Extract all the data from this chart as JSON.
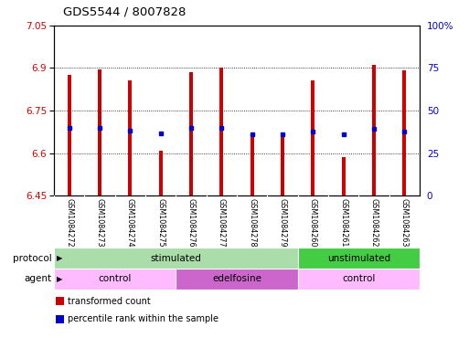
{
  "title": "GDS5544 / 8007828",
  "samples": [
    "GSM1084272",
    "GSM1084273",
    "GSM1084274",
    "GSM1084275",
    "GSM1084276",
    "GSM1084277",
    "GSM1084278",
    "GSM1084279",
    "GSM1084260",
    "GSM1084261",
    "GSM1084262",
    "GSM1084263"
  ],
  "bar_tops": [
    6.875,
    6.895,
    6.855,
    6.608,
    6.885,
    6.9,
    6.66,
    6.665,
    6.855,
    6.585,
    6.91,
    6.892
  ],
  "bar_bottoms": [
    6.45,
    6.45,
    6.45,
    6.45,
    6.45,
    6.45,
    6.45,
    6.45,
    6.45,
    6.45,
    6.45,
    6.45
  ],
  "percentile_vals": [
    6.69,
    6.69,
    6.68,
    6.67,
    6.69,
    6.69,
    6.665,
    6.665,
    6.675,
    6.665,
    6.685,
    6.675
  ],
  "ylim_left": [
    6.45,
    7.05
  ],
  "ylim_right": [
    0,
    100
  ],
  "yticks_left": [
    6.45,
    6.6,
    6.75,
    6.9,
    7.05
  ],
  "yticks_right": [
    0,
    25,
    50,
    75,
    100
  ],
  "ytick_labels_left": [
    "6.45",
    "6.6",
    "6.75",
    "6.9",
    "7.05"
  ],
  "ytick_labels_right": [
    "0",
    "25",
    "50",
    "75",
    "100%"
  ],
  "bar_color": "#cc0000",
  "percentile_color": "#0000cc",
  "grid_color": "#000000",
  "protocol_groups": [
    {
      "label": "stimulated",
      "start": 0,
      "end": 8,
      "color": "#aaddaa"
    },
    {
      "label": "unstimulated",
      "start": 8,
      "end": 12,
      "color": "#44cc44"
    }
  ],
  "agent_groups": [
    {
      "label": "control",
      "start": 0,
      "end": 4,
      "color": "#ffbbff"
    },
    {
      "label": "edelfosine",
      "start": 4,
      "end": 8,
      "color": "#cc66cc"
    },
    {
      "label": "control",
      "start": 8,
      "end": 12,
      "color": "#ffbbff"
    }
  ],
  "legend_items": [
    {
      "label": "transformed count",
      "color": "#cc0000"
    },
    {
      "label": "percentile rank within the sample",
      "color": "#0000cc"
    }
  ],
  "bg_color": "#ffffff",
  "plot_bg_color": "#ffffff",
  "tick_label_color_left": "#cc0000",
  "tick_label_color_right": "#0000cc",
  "label_bg_color": "#cccccc",
  "bar_width": 0.12
}
